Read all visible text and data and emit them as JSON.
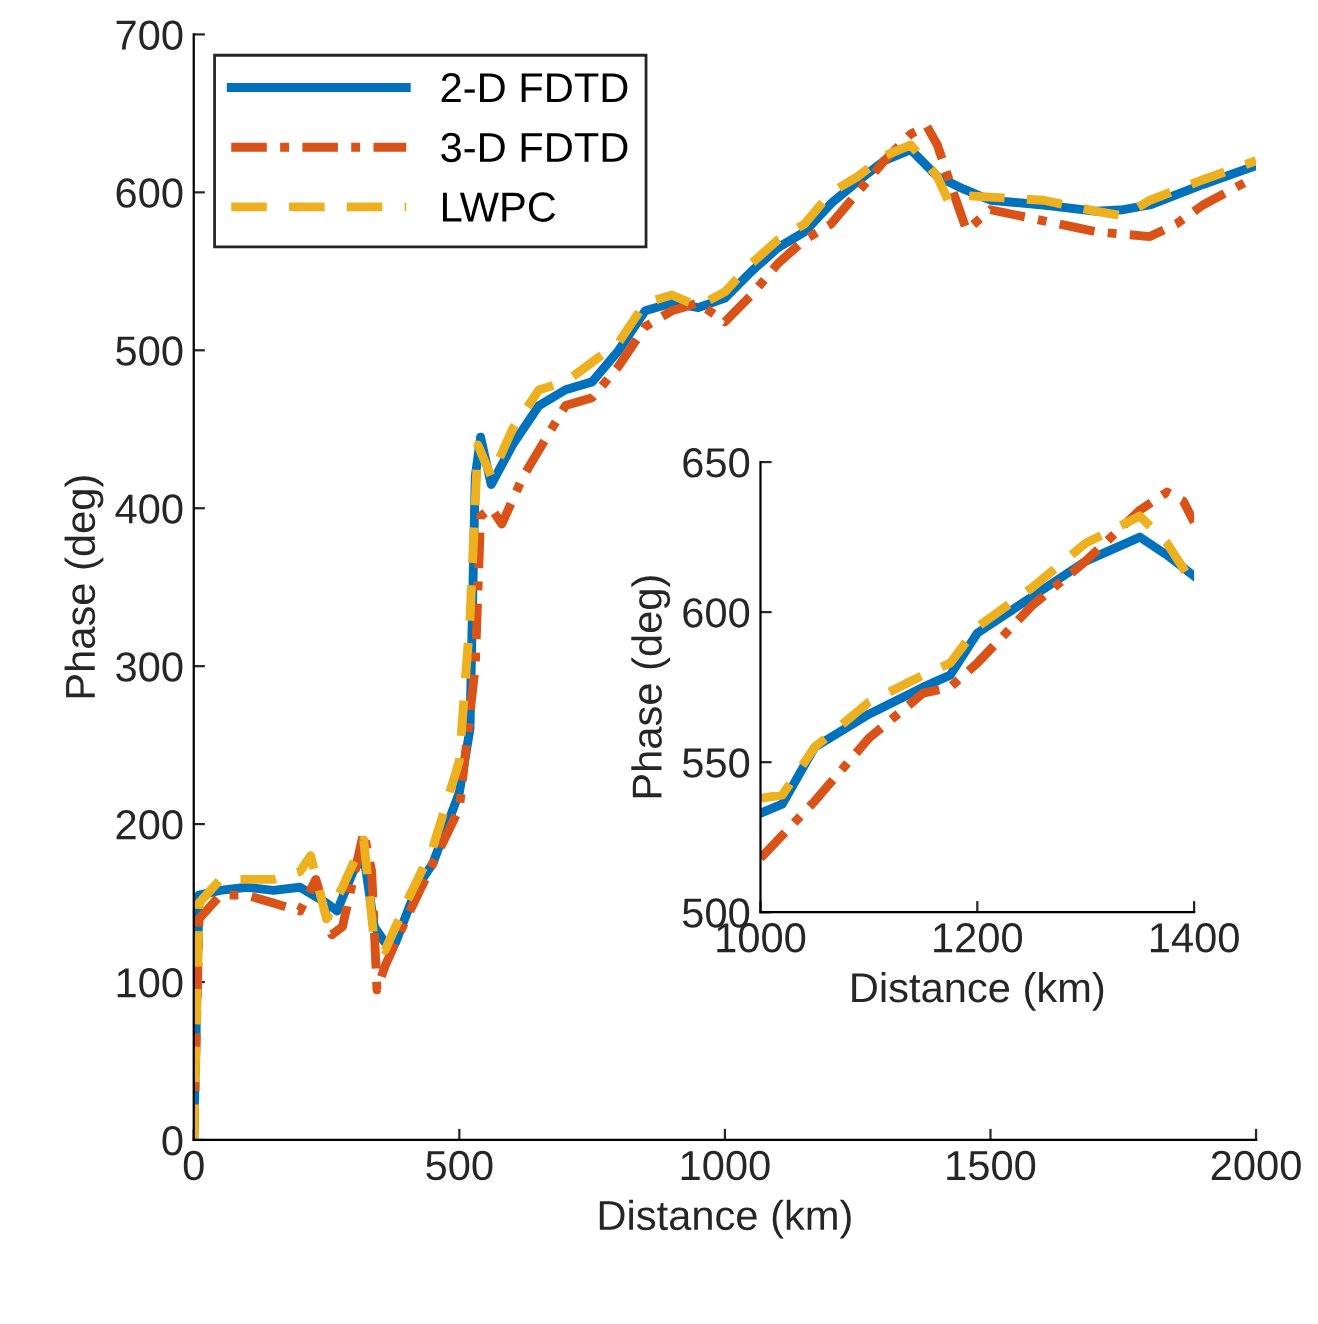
{
  "chart_data": [
    {
      "type": "line",
      "xlabel": "Distance (km)",
      "ylabel": "Phase (deg)",
      "xlim": [
        0,
        2000
      ],
      "ylim": [
        0,
        700
      ],
      "xticks": [
        0,
        500,
        1000,
        1500,
        2000
      ],
      "yticks": [
        0,
        100,
        200,
        300,
        400,
        500,
        600,
        700
      ],
      "legend": "top left",
      "series": [
        {
          "name": "2-D FDTD",
          "color": "#0072bd",
          "line_style": "solid",
          "x": [
            0,
            10,
            50,
            100,
            150,
            200,
            250,
            270,
            300,
            320,
            340,
            360,
            380,
            420,
            450,
            500,
            520,
            530,
            540,
            560,
            600,
            650,
            700,
            750,
            800,
            850,
            900,
            950,
            1000,
            1050,
            1100,
            1150,
            1200,
            1250,
            1300,
            1350,
            1400,
            1450,
            1500,
            1600,
            1700,
            1750,
            1800,
            1900,
            2000
          ],
          "values": [
            0,
            155,
            158,
            160,
            158,
            160,
            150,
            145,
            170,
            180,
            135,
            125,
            125,
            160,
            175,
            220,
            260,
            420,
            445,
            415,
            440,
            465,
            475,
            480,
            500,
            525,
            530,
            527,
            533,
            550,
            565,
            575,
            593,
            607,
            620,
            627,
            610,
            602,
            595,
            592,
            588,
            589,
            592,
            605,
            617
          ]
        },
        {
          "name": "3-D FDTD",
          "color": "#d95319",
          "line_style": "dashdot",
          "x": [
            0,
            10,
            50,
            100,
            150,
            200,
            230,
            260,
            280,
            320,
            335,
            345,
            360,
            400,
            450,
            500,
            530,
            540,
            560,
            580,
            620,
            700,
            750,
            800,
            850,
            900,
            950,
            1000,
            1050,
            1100,
            1150,
            1200,
            1250,
            1300,
            1350,
            1380,
            1400,
            1430,
            1455,
            1500,
            1600,
            1700,
            1800,
            1850,
            1900,
            2000
          ],
          "values": [
            0,
            140,
            155,
            155,
            150,
            145,
            165,
            130,
            135,
            195,
            170,
            95,
            110,
            140,
            175,
            210,
            300,
            395,
            400,
            390,
            420,
            465,
            470,
            490,
            515,
            525,
            530,
            518,
            535,
            555,
            570,
            580,
            600,
            620,
            637,
            642,
            630,
            600,
            576,
            589,
            582,
            575,
            572,
            580,
            592,
            610
          ]
        },
        {
          "name": "LWPC",
          "color": "#edb120",
          "line_style": "dashed",
          "x": [
            0,
            10,
            50,
            100,
            150,
            200,
            220,
            250,
            280,
            320,
            340,
            360,
            400,
            450,
            500,
            520,
            535,
            560,
            600,
            650,
            700,
            800,
            850,
            900,
            950,
            1000,
            1050,
            1100,
            1150,
            1200,
            1250,
            1300,
            1350,
            1400,
            1420,
            1450,
            1500,
            1600,
            1700,
            1750,
            1800,
            1900,
            2000
          ],
          "values": [
            0,
            150,
            165,
            165,
            165,
            170,
            180,
            140,
            160,
            190,
            125,
            120,
            150,
            185,
            240,
            330,
            440,
            420,
            450,
            475,
            480,
            505,
            530,
            535,
            528,
            537,
            555,
            570,
            580,
            600,
            610,
            623,
            630,
            610,
            595,
            598,
            597,
            595,
            588,
            585,
            595,
            608,
            620
          ]
        }
      ]
    },
    {
      "type": "line",
      "xlabel": "Distance (km)",
      "ylabel": "Phase (deg)",
      "xlim": [
        1000,
        1400
      ],
      "ylim": [
        500,
        650
      ],
      "xticks": [
        1000,
        1200,
        1400
      ],
      "yticks": [
        500,
        550,
        600,
        650
      ],
      "series": [
        {
          "color": "#0072bd",
          "line_style": "solid",
          "x": [
            1000,
            1020,
            1050,
            1100,
            1150,
            1175,
            1200,
            1250,
            1300,
            1350,
            1375,
            1400
          ],
          "values": [
            533,
            536,
            555,
            566,
            575,
            579,
            593,
            605,
            617,
            625,
            619,
            612
          ]
        },
        {
          "color": "#d95319",
          "line_style": "dashdot",
          "x": [
            1000,
            1050,
            1100,
            1150,
            1175,
            1200,
            1250,
            1300,
            1350,
            1375,
            1390,
            1400
          ],
          "values": [
            518,
            537,
            558,
            573,
            575,
            583,
            602,
            617,
            634,
            640,
            637,
            630
          ]
        },
        {
          "color": "#edb120",
          "line_style": "dashed",
          "x": [
            1000,
            1020,
            1050,
            1100,
            1150,
            1175,
            1200,
            1250,
            1300,
            1350,
            1375,
            1400
          ],
          "values": [
            538,
            539,
            555,
            570,
            579,
            583,
            595,
            608,
            623,
            632,
            623,
            609
          ]
        }
      ]
    }
  ]
}
